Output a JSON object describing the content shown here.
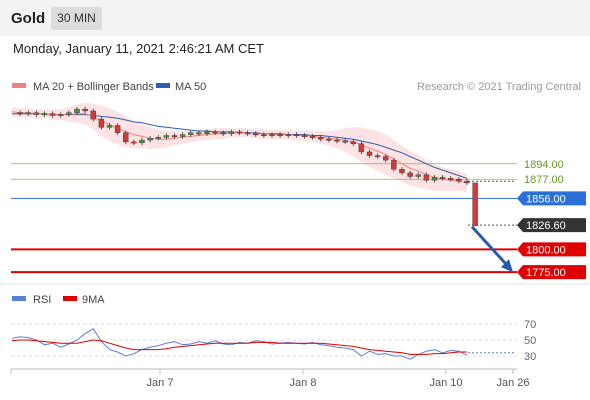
{
  "header": {
    "symbol": "Gold",
    "timeframe": "30 MIN",
    "datetime": "Monday, January 11, 2021 2:46:21 AM CET"
  },
  "legend": {
    "ma20": "MA 20 + Bollinger Bands",
    "ma50": "MA 50",
    "ma20_color": "#f08080",
    "ma50_color": "#2b5fb4",
    "copyright": "Research © 2021 Trading Central"
  },
  "rsi_legend": {
    "rsi": "RSI",
    "ma9": "9MA",
    "rsi_color": "#5b7fd6",
    "ma9_color": "#e00000"
  },
  "levels": [
    {
      "label": "1894.00",
      "value": 1894,
      "style": "thin",
      "color": "#8fb54a",
      "text_color": "#6a9a22"
    },
    {
      "label": "1877.00",
      "value": 1877,
      "style": "thin",
      "color": "#8fb54a",
      "text_color": "#6a9a22"
    },
    {
      "label": "1856.00",
      "value": 1856,
      "style": "tag",
      "color": "#2b6fd8"
    },
    {
      "label": "1826.60",
      "value": 1826.6,
      "style": "tag",
      "color": "#333333"
    },
    {
      "label": "1800.00",
      "value": 1800,
      "style": "tag",
      "color": "#e00000"
    },
    {
      "label": "1775.00",
      "value": 1775,
      "style": "tag",
      "color": "#e00000"
    }
  ],
  "x_labels": [
    "Jan 7",
    "Jan 8",
    "Jan 10",
    "Jan 26"
  ],
  "rsi_ticks": [
    "70",
    "50",
    "30"
  ],
  "chart_data": {
    "type": "line",
    "price_ylim": [
      1762,
      1964
    ],
    "price": [
      1950,
      1949,
      1950,
      1948,
      1949,
      1947,
      1948,
      1950,
      1954,
      1952,
      1943,
      1934,
      1936,
      1928,
      1918,
      1917,
      1920,
      1922,
      1923,
      1925,
      1924,
      1926,
      1928,
      1927,
      1929,
      1928,
      1927,
      1929,
      1928,
      1927,
      1926,
      1925,
      1926,
      1925,
      1926,
      1925,
      1924,
      1923,
      1921,
      1920,
      1919,
      1918,
      1916,
      1907,
      1903,
      1902,
      1898,
      1888,
      1884,
      1880,
      1882,
      1876,
      1879,
      1878,
      1877,
      1875,
      1873
    ],
    "ma20": [
      1951,
      1950,
      1950,
      1949,
      1949,
      1948,
      1948,
      1948,
      1949,
      1949,
      1946,
      1941,
      1937,
      1933,
      1929,
      1926,
      1924,
      1922,
      1921,
      1921,
      1922,
      1923,
      1924,
      1925,
      1926,
      1927,
      1927,
      1928,
      1928,
      1928,
      1927,
      1927,
      1926,
      1926,
      1926,
      1925,
      1925,
      1924,
      1923,
      1922,
      1921,
      1920,
      1918,
      1915,
      1911,
      1908,
      1904,
      1899,
      1894,
      1889,
      1886,
      1882,
      1879,
      1877,
      1876,
      1875,
      1873
    ],
    "ma50": [
      1949,
      1949,
      1949,
      1949,
      1949,
      1948,
      1948,
      1948,
      1948,
      1948,
      1947,
      1946,
      1945,
      1944,
      1942,
      1940,
      1939,
      1937,
      1935,
      1934,
      1933,
      1932,
      1931,
      1930,
      1930,
      1929,
      1929,
      1929,
      1928,
      1928,
      1928,
      1927,
      1927,
      1927,
      1926,
      1926,
      1926,
      1925,
      1925,
      1924,
      1923,
      1922,
      1921,
      1919,
      1917,
      1915,
      1912,
      1909,
      1906,
      1902,
      1898,
      1894,
      1890,
      1887,
      1884,
      1881,
      1878
    ],
    "band_width": [
      5,
      5,
      5,
      5,
      5,
      5,
      6,
      8,
      10,
      12,
      14,
      17,
      18,
      18,
      17,
      15,
      13,
      12,
      10,
      9,
      8,
      7,
      6,
      6,
      6,
      6,
      6,
      5,
      5,
      5,
      5,
      5,
      5,
      5,
      5,
      5,
      6,
      6,
      7,
      8,
      10,
      13,
      16,
      19,
      21,
      22,
      22,
      21,
      20,
      19,
      18,
      16,
      15,
      13,
      12,
      11,
      10
    ],
    "forecast": {
      "from": 1826,
      "to": 1775
    },
    "rsi": [
      52,
      54,
      53,
      50,
      44,
      46,
      41,
      45,
      50,
      58,
      64,
      48,
      38,
      35,
      30,
      33,
      38,
      41,
      43,
      46,
      48,
      44,
      45,
      48,
      46,
      49,
      45,
      44,
      47,
      46,
      49,
      48,
      45,
      46,
      47,
      46,
      45,
      47,
      44,
      43,
      41,
      40,
      38,
      30,
      36,
      32,
      33,
      30,
      30,
      26,
      32,
      36,
      38,
      34,
      37,
      36,
      31
    ],
    "rsi_ma9": [
      49,
      50,
      50,
      49,
      48,
      47,
      46,
      46,
      46,
      48,
      50,
      49,
      46,
      43,
      40,
      38,
      38,
      38,
      38,
      39,
      41,
      42,
      43,
      44,
      45,
      46,
      46,
      46,
      46,
      46,
      47,
      47,
      47,
      46,
      46,
      46,
      46,
      46,
      46,
      45,
      44,
      43,
      42,
      40,
      38,
      37,
      36,
      35,
      34,
      32,
      32,
      32,
      33,
      33,
      34,
      35,
      35
    ],
    "rsi_ylim": [
      15,
      85
    ]
  }
}
